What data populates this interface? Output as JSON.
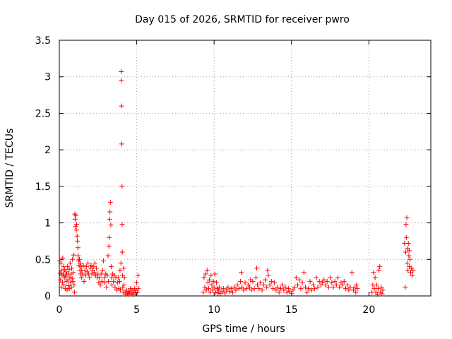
{
  "chart_data": {
    "type": "scatter",
    "title": "Day 015 of 2026, SRMTID for receiver pwro",
    "xlabel": "GPS time / hours",
    "ylabel": "SRMTID / TECUs",
    "xlim": [
      0,
      24
    ],
    "ylim": [
      0,
      3.5
    ],
    "grid": true,
    "x_ticks": [
      0,
      5,
      10,
      15,
      20
    ],
    "y_ticks": [
      0,
      0.5,
      1,
      1.5,
      2,
      2.5,
      3,
      3.5
    ],
    "x_tick_labels": [
      "0",
      "5",
      "10",
      "15",
      "20"
    ],
    "y_tick_labels": [
      "0",
      "0.5",
      "1",
      "1.5",
      "2",
      "2.5",
      "3",
      "3.5"
    ],
    "marker": "+",
    "series": [
      {
        "name": "SRMTID",
        "color": "#ff0000",
        "points": [
          [
            0.02,
            0.48
          ],
          [
            0.05,
            0.31
          ],
          [
            0.08,
            0.22
          ],
          [
            0.1,
            0.45
          ],
          [
            0.12,
            0.12
          ],
          [
            0.15,
            0.35
          ],
          [
            0.18,
            0.28
          ],
          [
            0.2,
            0.18
          ],
          [
            0.22,
            0.52
          ],
          [
            0.25,
            0.3
          ],
          [
            0.28,
            0.4
          ],
          [
            0.3,
            0.15
          ],
          [
            0.33,
            0.25
          ],
          [
            0.35,
            0.36
          ],
          [
            0.38,
            0.1
          ],
          [
            0.4,
            0.27
          ],
          [
            0.43,
            0.33
          ],
          [
            0.45,
            0.2
          ],
          [
            0.48,
            0.3
          ],
          [
            0.5,
            0.08
          ],
          [
            0.53,
            0.4
          ],
          [
            0.55,
            0.22
          ],
          [
            0.58,
            0.14
          ],
          [
            0.6,
            0.3
          ],
          [
            0.63,
            0.36
          ],
          [
            0.65,
            0.1
          ],
          [
            0.68,
            0.25
          ],
          [
            0.7,
            0.45
          ],
          [
            0.73,
            0.18
          ],
          [
            0.75,
            0.3
          ],
          [
            0.78,
            0.12
          ],
          [
            0.8,
            0.38
          ],
          [
            0.83,
            0.24
          ],
          [
            0.85,
            0.5
          ],
          [
            0.88,
            0.2
          ],
          [
            0.9,
            0.32
          ],
          [
            0.93,
            0.56
          ],
          [
            0.95,
            0.15
          ],
          [
            0.98,
            0.05
          ],
          [
            1.0,
            1.12
          ],
          [
            1.02,
            1.05
          ],
          [
            1.05,
            0.95
          ],
          [
            1.07,
            1.1
          ],
          [
            1.1,
            0.9
          ],
          [
            1.12,
            0.98
          ],
          [
            1.15,
            0.82
          ],
          [
            1.17,
            0.75
          ],
          [
            1.2,
            0.66
          ],
          [
            1.22,
            0.55
          ],
          [
            1.25,
            0.48
          ],
          [
            1.28,
            0.42
          ],
          [
            1.3,
            0.5
          ],
          [
            1.33,
            0.35
          ],
          [
            1.35,
            0.45
          ],
          [
            1.38,
            0.3
          ],
          [
            1.4,
            0.4
          ],
          [
            1.43,
            0.25
          ],
          [
            1.45,
            0.35
          ],
          [
            1.5,
            0.3
          ],
          [
            1.55,
            0.42
          ],
          [
            1.6,
            0.2
          ],
          [
            1.65,
            0.35
          ],
          [
            1.7,
            0.28
          ],
          [
            1.75,
            0.4
          ],
          [
            1.8,
            0.33
          ],
          [
            1.85,
            0.45
          ],
          [
            1.9,
            0.3
          ],
          [
            1.95,
            0.25
          ],
          [
            2.0,
            0.38
          ],
          [
            2.05,
            0.42
          ],
          [
            2.1,
            0.3
          ],
          [
            2.15,
            0.35
          ],
          [
            2.2,
            0.4
          ],
          [
            2.25,
            0.32
          ],
          [
            2.3,
            0.45
          ],
          [
            2.35,
            0.28
          ],
          [
            2.4,
            0.38
          ],
          [
            2.45,
            0.25
          ],
          [
            2.5,
            0.3
          ],
          [
            2.55,
            0.18
          ],
          [
            2.6,
            0.25
          ],
          [
            2.65,
            0.15
          ],
          [
            2.7,
            0.3
          ],
          [
            2.75,
            0.2
          ],
          [
            2.8,
            0.35
          ],
          [
            2.85,
            0.48
          ],
          [
            2.9,
            0.25
          ],
          [
            2.95,
            0.18
          ],
          [
            3.0,
            0.3
          ],
          [
            3.05,
            0.12
          ],
          [
            3.1,
            0.28
          ],
          [
            3.15,
            0.55
          ],
          [
            3.18,
            0.2
          ],
          [
            3.2,
            0.68
          ],
          [
            3.22,
            0.8
          ],
          [
            3.25,
            1.05
          ],
          [
            3.27,
            1.15
          ],
          [
            3.3,
            1.28
          ],
          [
            3.33,
            0.97
          ],
          [
            3.35,
            0.4
          ],
          [
            3.38,
            0.25
          ],
          [
            3.4,
            0.15
          ],
          [
            3.45,
            0.3
          ],
          [
            3.5,
            0.2
          ],
          [
            3.55,
            0.28
          ],
          [
            3.6,
            0.12
          ],
          [
            3.65,
            0.25
          ],
          [
            3.7,
            0.08
          ],
          [
            3.75,
            0.18
          ],
          [
            3.8,
            0.25
          ],
          [
            3.85,
            0.1
          ],
          [
            3.9,
            0.2
          ],
          [
            3.92,
            0.35
          ],
          [
            3.95,
            0.08
          ],
          [
            3.98,
            0.45
          ],
          [
            4.0,
            3.07
          ],
          [
            4.0,
            2.95
          ],
          [
            4.02,
            2.6
          ],
          [
            4.03,
            2.08
          ],
          [
            4.05,
            1.5
          ],
          [
            4.06,
            0.98
          ],
          [
            4.07,
            0.6
          ],
          [
            4.08,
            0.28
          ],
          [
            4.1,
            0.12
          ],
          [
            4.12,
            0.05
          ],
          [
            4.15,
            0.38
          ],
          [
            4.18,
            0.15
          ],
          [
            4.2,
            0.25
          ],
          [
            4.25,
            0.05
          ],
          [
            4.3,
            0.02
          ],
          [
            4.35,
            0.08
          ],
          [
            4.4,
            0.03
          ],
          [
            4.45,
            0.06
          ],
          [
            4.5,
            0.02
          ],
          [
            4.55,
            0.05
          ],
          [
            4.6,
            0.1
          ],
          [
            4.65,
            0.03
          ],
          [
            4.7,
            0.08
          ],
          [
            4.75,
            0.02
          ],
          [
            4.8,
            0.05
          ],
          [
            4.85,
            0.1
          ],
          [
            4.9,
            0.04
          ],
          [
            4.95,
            0.08
          ],
          [
            5.0,
            0.18
          ],
          [
            5.05,
            0.05
          ],
          [
            5.08,
            0.28
          ],
          [
            5.1,
            0.1
          ],
          [
            9.3,
            0.05
          ],
          [
            9.35,
            0.25
          ],
          [
            9.4,
            0.12
          ],
          [
            9.45,
            0.3
          ],
          [
            9.5,
            0.08
          ],
          [
            9.55,
            0.35
          ],
          [
            9.6,
            0.18
          ],
          [
            9.65,
            0.1
          ],
          [
            9.7,
            0.22
          ],
          [
            9.75,
            0.05
          ],
          [
            9.8,
            0.28
          ],
          [
            9.85,
            0.15
          ],
          [
            9.9,
            0.08
          ],
          [
            9.95,
            0.2
          ],
          [
            10.0,
            0.12
          ],
          [
            10.05,
            0.3
          ],
          [
            10.1,
            0.05
          ],
          [
            10.15,
            0.18
          ],
          [
            10.2,
            0.1
          ],
          [
            10.25,
            0.04
          ],
          [
            10.3,
            0.08
          ],
          [
            10.35,
            0.12
          ],
          [
            10.4,
            0.03
          ],
          [
            10.5,
            0.06
          ],
          [
            10.6,
            0.1
          ],
          [
            10.7,
            0.04
          ],
          [
            10.8,
            0.08
          ],
          [
            10.9,
            0.12
          ],
          [
            11.0,
            0.06
          ],
          [
            11.1,
            0.1
          ],
          [
            11.2,
            0.05
          ],
          [
            11.3,
            0.12
          ],
          [
            11.4,
            0.08
          ],
          [
            11.5,
            0.15
          ],
          [
            11.6,
            0.1
          ],
          [
            11.7,
            0.2
          ],
          [
            11.75,
            0.32
          ],
          [
            11.8,
            0.12
          ],
          [
            11.9,
            0.08
          ],
          [
            12.0,
            0.18
          ],
          [
            12.1,
            0.1
          ],
          [
            12.2,
            0.15
          ],
          [
            12.3,
            0.12
          ],
          [
            12.35,
            0.22
          ],
          [
            12.4,
            0.08
          ],
          [
            12.5,
            0.2
          ],
          [
            12.6,
            0.1
          ],
          [
            12.7,
            0.25
          ],
          [
            12.75,
            0.38
          ],
          [
            12.8,
            0.15
          ],
          [
            12.9,
            0.1
          ],
          [
            13.0,
            0.18
          ],
          [
            13.1,
            0.08
          ],
          [
            13.2,
            0.15
          ],
          [
            13.3,
            0.22
          ],
          [
            13.4,
            0.12
          ],
          [
            13.45,
            0.35
          ],
          [
            13.5,
            0.28
          ],
          [
            13.6,
            0.15
          ],
          [
            13.7,
            0.2
          ],
          [
            13.8,
            0.1
          ],
          [
            13.9,
            0.18
          ],
          [
            14.0,
            0.08
          ],
          [
            14.1,
            0.12
          ],
          [
            14.2,
            0.05
          ],
          [
            14.3,
            0.1
          ],
          [
            14.4,
            0.15
          ],
          [
            14.5,
            0.08
          ],
          [
            14.6,
            0.12
          ],
          [
            14.7,
            0.05
          ],
          [
            14.8,
            0.1
          ],
          [
            14.9,
            0.06
          ],
          [
            15.0,
            0.03
          ],
          [
            15.1,
            0.08
          ],
          [
            15.2,
            0.12
          ],
          [
            15.3,
            0.25
          ],
          [
            15.4,
            0.15
          ],
          [
            15.5,
            0.22
          ],
          [
            15.6,
            0.1
          ],
          [
            15.7,
            0.18
          ],
          [
            15.8,
            0.32
          ],
          [
            15.9,
            0.12
          ],
          [
            16.0,
            0.05
          ],
          [
            16.1,
            0.1
          ],
          [
            16.2,
            0.2
          ],
          [
            16.3,
            0.08
          ],
          [
            16.4,
            0.15
          ],
          [
            16.5,
            0.1
          ],
          [
            16.6,
            0.25
          ],
          [
            16.7,
            0.12
          ],
          [
            16.8,
            0.2
          ],
          [
            16.9,
            0.15
          ],
          [
            17.0,
            0.18
          ],
          [
            17.1,
            0.22
          ],
          [
            17.2,
            0.15
          ],
          [
            17.3,
            0.2
          ],
          [
            17.4,
            0.12
          ],
          [
            17.5,
            0.25
          ],
          [
            17.6,
            0.18
          ],
          [
            17.7,
            0.12
          ],
          [
            17.8,
            0.2
          ],
          [
            17.9,
            0.15
          ],
          [
            18.0,
            0.25
          ],
          [
            18.1,
            0.12
          ],
          [
            18.2,
            0.18
          ],
          [
            18.3,
            0.15
          ],
          [
            18.4,
            0.2
          ],
          [
            18.5,
            0.1
          ],
          [
            18.6,
            0.15
          ],
          [
            18.7,
            0.08
          ],
          [
            18.8,
            0.12
          ],
          [
            18.9,
            0.32
          ],
          [
            19.0,
            0.08
          ],
          [
            19.1,
            0.12
          ],
          [
            19.15,
            0.05
          ],
          [
            19.2,
            0.15
          ],
          [
            19.25,
            0.1
          ],
          [
            20.2,
            0.05
          ],
          [
            20.25,
            0.15
          ],
          [
            20.3,
            0.32
          ],
          [
            20.35,
            0.1
          ],
          [
            20.4,
            0.25
          ],
          [
            20.45,
            0.05
          ],
          [
            20.5,
            0.15
          ],
          [
            20.55,
            0.02
          ],
          [
            20.6,
            0.1
          ],
          [
            20.65,
            0.35
          ],
          [
            20.7,
            0.4
          ],
          [
            20.75,
            0.05
          ],
          [
            20.8,
            0.12
          ],
          [
            20.85,
            0.03
          ],
          [
            20.9,
            0.08
          ],
          [
            22.3,
            0.72
          ],
          [
            22.35,
            0.12
          ],
          [
            22.38,
            0.6
          ],
          [
            22.4,
            0.98
          ],
          [
            22.42,
            0.8
          ],
          [
            22.45,
            1.07
          ],
          [
            22.48,
            0.45
          ],
          [
            22.5,
            0.65
          ],
          [
            22.52,
            0.35
          ],
          [
            22.55,
            0.72
          ],
          [
            22.58,
            0.55
          ],
          [
            22.6,
            0.62
          ],
          [
            22.62,
            0.4
          ],
          [
            22.65,
            0.5
          ],
          [
            22.7,
            0.32
          ],
          [
            22.75,
            0.38
          ],
          [
            22.8,
            0.28
          ],
          [
            22.85,
            0.35
          ]
        ]
      }
    ]
  }
}
